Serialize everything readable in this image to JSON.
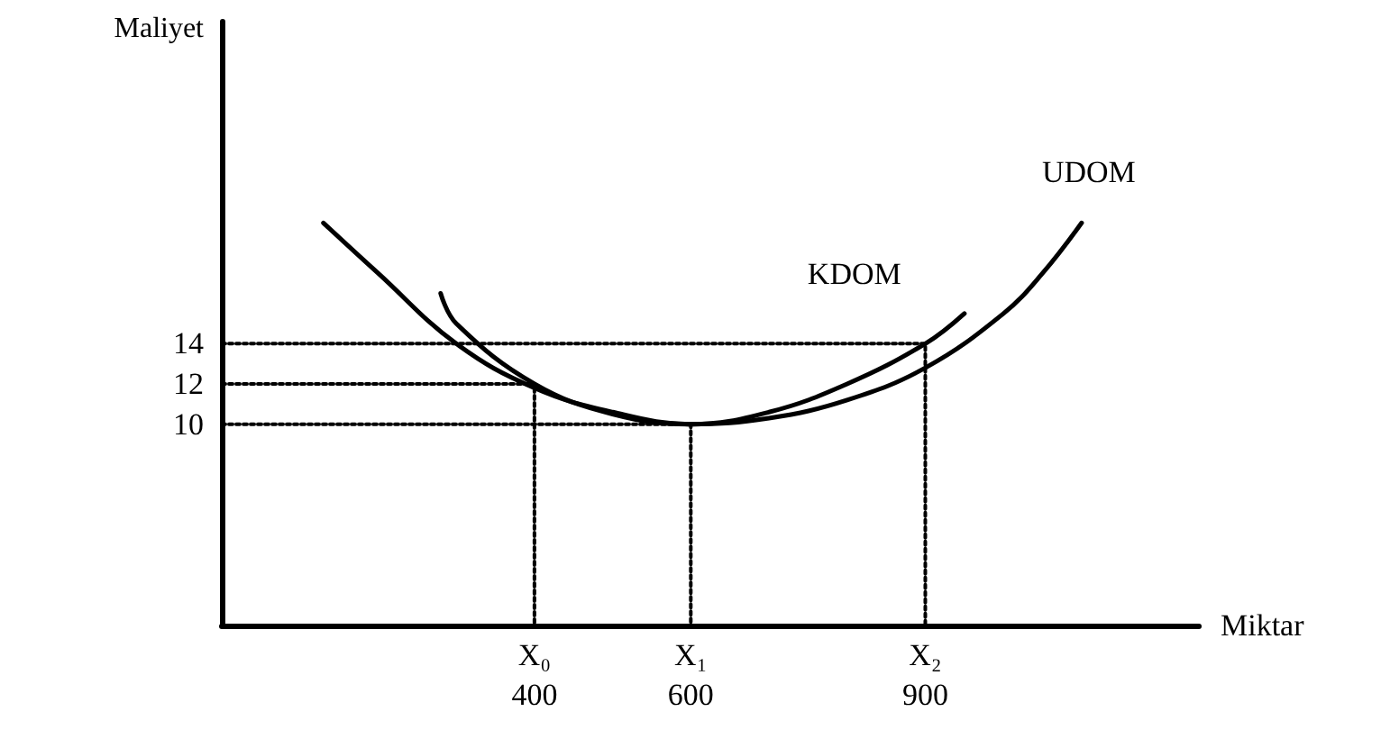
{
  "chart_data": {
    "type": "line",
    "xlabel": "Miktar",
    "ylabel": "Maliyet",
    "xlim": [
      0,
      1250
    ],
    "ylim": [
      0,
      30
    ],
    "xticks": [
      400,
      600,
      900
    ],
    "annotations": [
      "X₀",
      "X₁",
      "X₂"
    ],
    "yticks": [
      10,
      12,
      14
    ],
    "grid": false,
    "legend": false,
    "marker": "none",
    "series": [
      {
        "name": "UDOM",
        "color": "#000000",
        "line_style": "solid",
        "x": [
          130,
          200,
          300,
          400,
          500,
          600,
          700,
          800,
          900,
          1000,
          1050,
          1100
        ],
        "values": [
          20,
          17.5,
          14,
          11.8,
          10.6,
          10,
          10.3,
          11.2,
          12.8,
          15.5,
          17.5,
          20
        ]
      },
      {
        "name": "KDOM",
        "color": "#000000",
        "line_style": "solid",
        "x": [
          280,
          300,
          400,
          500,
          600,
          700,
          800,
          900,
          950
        ],
        "values": [
          16.5,
          15,
          12,
          10.5,
          10,
          10.6,
          12,
          14,
          15.5
        ]
      },
      {
        "color": "#000000",
        "line_style": "dotted",
        "x": [
          0,
          400,
          400
        ],
        "values": [
          12,
          12,
          0
        ]
      },
      {
        "color": "#000000",
        "line_style": "dotted",
        "x": [
          0,
          600,
          600
        ],
        "values": [
          10,
          10,
          0
        ]
      },
      {
        "color": "#000000",
        "line_style": "dotted",
        "x": [
          0,
          900,
          900
        ],
        "values": [
          14,
          14,
          0
        ]
      }
    ]
  }
}
